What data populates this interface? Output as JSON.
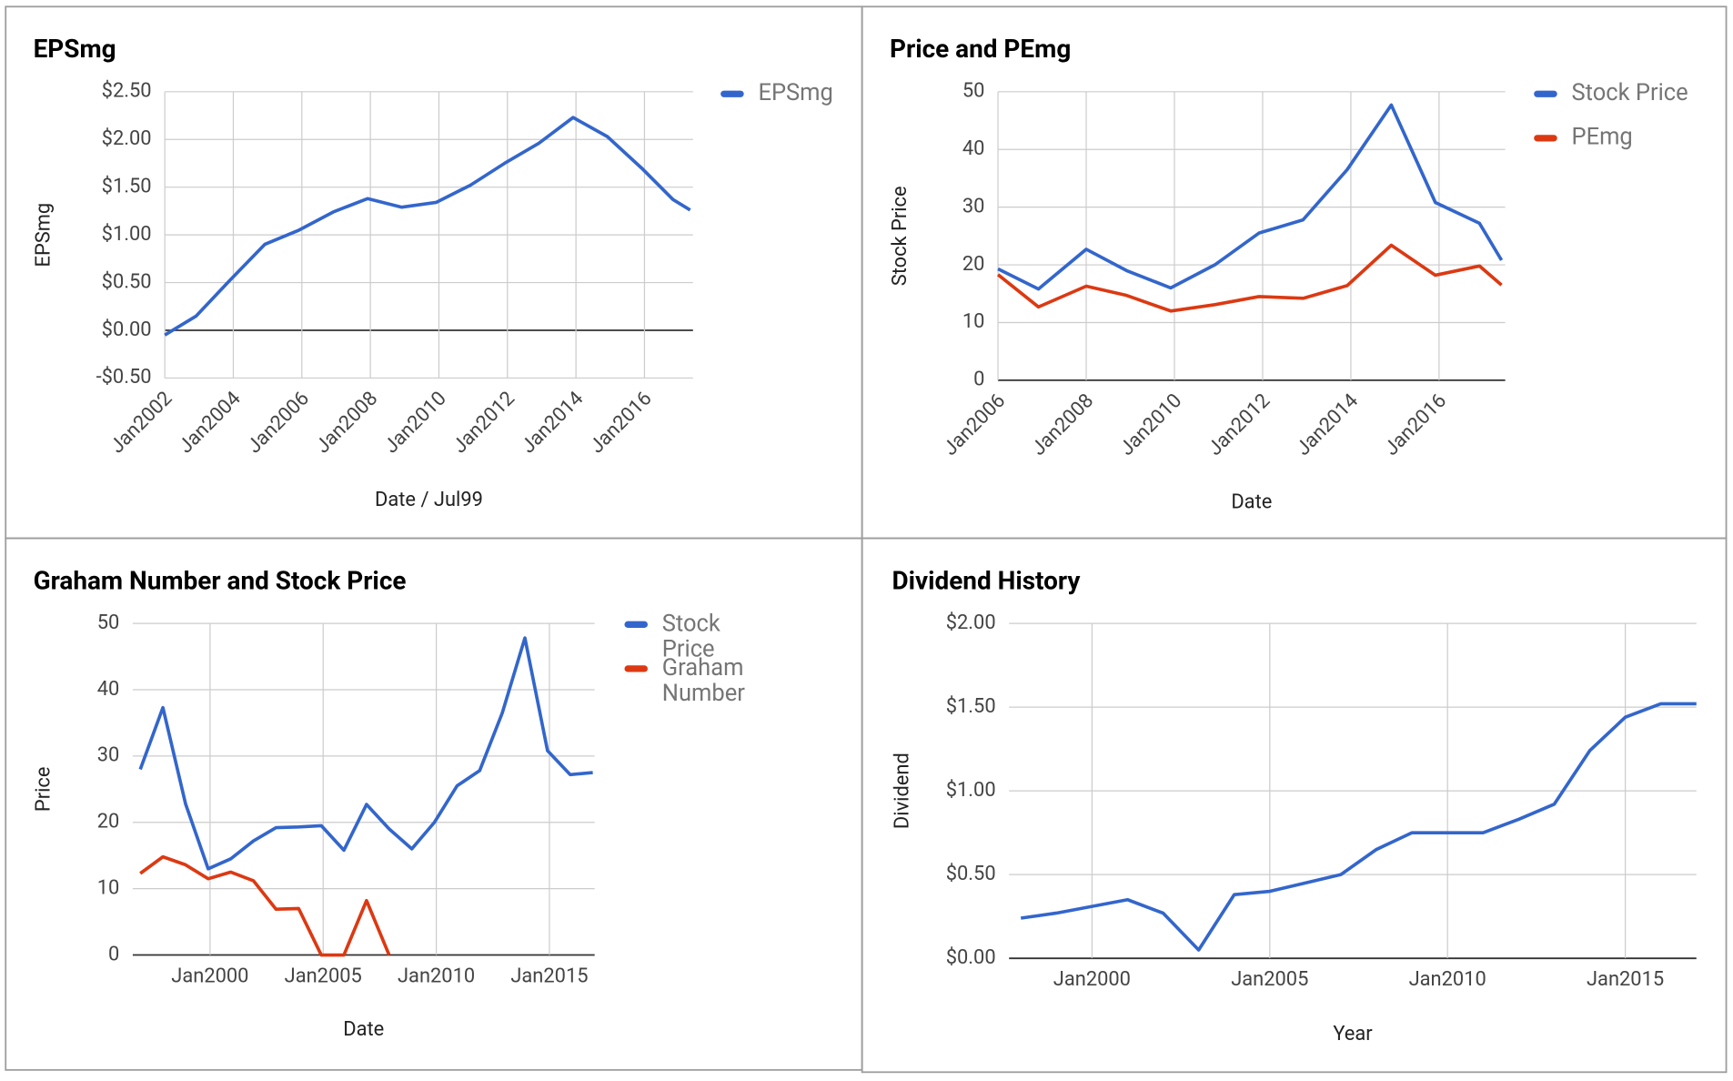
{
  "chart_data": [
    {
      "type": "line",
      "title": "EPSmg",
      "x_label": "Date / Jul99",
      "y_label": "EPSmg",
      "legend": "right",
      "x": [
        "2002-01",
        "2002-12",
        "2003-12",
        "2004-12",
        "2005-12",
        "2006-12",
        "2007-12",
        "2008-12",
        "2009-12",
        "2010-12",
        "2011-12",
        "2012-12",
        "2013-12",
        "2014-12",
        "2015-12",
        "2016-11",
        "2017-05"
      ],
      "series": [
        {
          "name": "EPSmg",
          "color": "#3366cc",
          "values": [
            -0.05,
            0.15,
            0.53,
            0.9,
            1.05,
            1.24,
            1.38,
            1.29,
            1.34,
            1.52,
            1.75,
            1.96,
            2.23,
            2.03,
            1.7,
            1.37,
            1.26
          ]
        }
      ],
      "xlim": [
        "2002-01",
        "2017-06"
      ],
      "xticks": [
        {
          "value": "2002-01",
          "label": "Jan2002"
        },
        {
          "value": "2004-01",
          "label": "Jan2004"
        },
        {
          "value": "2006-01",
          "label": "Jan2006"
        },
        {
          "value": "2008-01",
          "label": "Jan2008"
        },
        {
          "value": "2010-01",
          "label": "Jan2010"
        },
        {
          "value": "2012-01",
          "label": "Jan2012"
        },
        {
          "value": "2014-01",
          "label": "Jan2014"
        },
        {
          "value": "2016-01",
          "label": "Jan2016"
        }
      ],
      "ylim": [
        -0.5,
        2.5
      ],
      "yticks": [
        {
          "value": -0.5,
          "label": "-$0.50"
        },
        {
          "value": 0,
          "label": "$0.00"
        },
        {
          "value": 0.5,
          "label": "$0.50"
        },
        {
          "value": 1,
          "label": "$1.00"
        },
        {
          "value": 1.5,
          "label": "$1.50"
        },
        {
          "value": 2,
          "label": "$2.00"
        },
        {
          "value": 2.5,
          "label": "$2.50"
        }
      ],
      "grid": true
    },
    {
      "type": "line",
      "title": "Price and PEmg",
      "x_label": "Date",
      "y_label": "Stock Price",
      "legend": "right",
      "x": [
        "2006-01",
        "2006-12",
        "2008-01",
        "2008-12",
        "2009-12",
        "2010-12",
        "2011-12",
        "2012-12",
        "2013-12",
        "2014-12",
        "2015-12",
        "2016-12",
        "2017-06"
      ],
      "series": [
        {
          "name": "Stock Price",
          "color": "#3366cc",
          "values": [
            19.3,
            15.8,
            22.7,
            19,
            16,
            20,
            25.5,
            27.8,
            36.5,
            47.7,
            30.8,
            27.2,
            20.8
          ]
        },
        {
          "name": "PEmg",
          "color": "#dc3912",
          "values": [
            18.3,
            12.7,
            16.3,
            14.7,
            12,
            13.1,
            14.5,
            14.2,
            16.4,
            23.4,
            18.2,
            19.8,
            16.5
          ]
        }
      ],
      "xlim": [
        "2006-01",
        "2017-07"
      ],
      "xticks": [
        {
          "value": "2006-01",
          "label": "Jan2006"
        },
        {
          "value": "2008-01",
          "label": "Jan2008"
        },
        {
          "value": "2010-01",
          "label": "Jan2010"
        },
        {
          "value": "2012-01",
          "label": "Jan2012"
        },
        {
          "value": "2014-01",
          "label": "Jan2014"
        },
        {
          "value": "2016-01",
          "label": "Jan2016"
        }
      ],
      "ylim": [
        0,
        50
      ],
      "yticks": [
        0,
        10,
        20,
        30,
        40,
        50
      ],
      "grid": true
    },
    {
      "type": "line",
      "title": "Graham Number and Stock Price",
      "x_label": "Date",
      "y_label": "Price",
      "legend": "right",
      "x": [
        "1996-12",
        "1997-12",
        "1998-12",
        "1999-12",
        "2000-12",
        "2001-12",
        "2002-12",
        "2003-12",
        "2004-12",
        "2005-12",
        "2006-12",
        "2007-12",
        "2008-12",
        "2009-12",
        "2010-12",
        "2011-12",
        "2012-12",
        "2013-12",
        "2014-12",
        "2015-12",
        "2016-12"
      ],
      "series": [
        {
          "name": "Stock Price",
          "color": "#3366cc",
          "values": [
            28,
            37.3,
            22.8,
            13,
            14.5,
            17.2,
            19.2,
            19.3,
            19.5,
            15.8,
            22.7,
            19,
            16,
            20,
            25.5,
            27.8,
            36.5,
            47.8,
            30.8,
            27.2,
            27.5
          ]
        },
        {
          "name": "Graham Number",
          "color": "#dc3912",
          "values": [
            12.3,
            14.8,
            13.6,
            11.5,
            12.5,
            11.2,
            6.9,
            7,
            0,
            0,
            8.2,
            0,
            null,
            null,
            null,
            null,
            null,
            null,
            null,
            null,
            null
          ]
        }
      ],
      "xlim": [
        "1996-08",
        "2017-01"
      ],
      "xticks": [
        {
          "value": "2000-01",
          "label": "Jan2000"
        },
        {
          "value": "2005-01",
          "label": "Jan2005"
        },
        {
          "value": "2010-01",
          "label": "Jan2010"
        },
        {
          "value": "2015-01",
          "label": "Jan2015"
        }
      ],
      "ylim": [
        0,
        50
      ],
      "yticks": [
        0,
        10,
        20,
        30,
        40,
        50
      ],
      "grid": true
    },
    {
      "type": "line",
      "title": "Dividend History",
      "x_label": "Year",
      "y_label": "Dividend",
      "legend": "none",
      "x": [
        "1998-01",
        "1999-01",
        "2000-01",
        "2001-01",
        "2002-01",
        "2003-01",
        "2004-01",
        "2005-01",
        "2006-01",
        "2007-01",
        "2008-01",
        "2009-01",
        "2010-01",
        "2011-01",
        "2012-01",
        "2013-01",
        "2014-01",
        "2015-01",
        "2016-01",
        "2017-01"
      ],
      "series": [
        {
          "name": "Dividend",
          "color": "#3366cc",
          "values": [
            0.24,
            0.27,
            0.31,
            0.35,
            0.27,
            0.05,
            0.38,
            0.4,
            0.45,
            0.5,
            0.65,
            0.75,
            0.75,
            0.75,
            0.83,
            0.92,
            1.24,
            1.44,
            1.52,
            1.52
          ]
        }
      ],
      "xlim": [
        "1997-09",
        "2017-01"
      ],
      "xticks": [
        {
          "value": "2000-01",
          "label": "Jan2000"
        },
        {
          "value": "2005-01",
          "label": "Jan2005"
        },
        {
          "value": "2010-01",
          "label": "Jan2010"
        },
        {
          "value": "2015-01",
          "label": "Jan2015"
        }
      ],
      "ylim": [
        0,
        2
      ],
      "yticks": [
        {
          "value": 0,
          "label": "$0.00"
        },
        {
          "value": 0.5,
          "label": "$0.50"
        },
        {
          "value": 1,
          "label": "$1.00"
        },
        {
          "value": 1.5,
          "label": "$1.50"
        },
        {
          "value": 2,
          "label": "$2.00"
        }
      ],
      "grid": true
    }
  ]
}
